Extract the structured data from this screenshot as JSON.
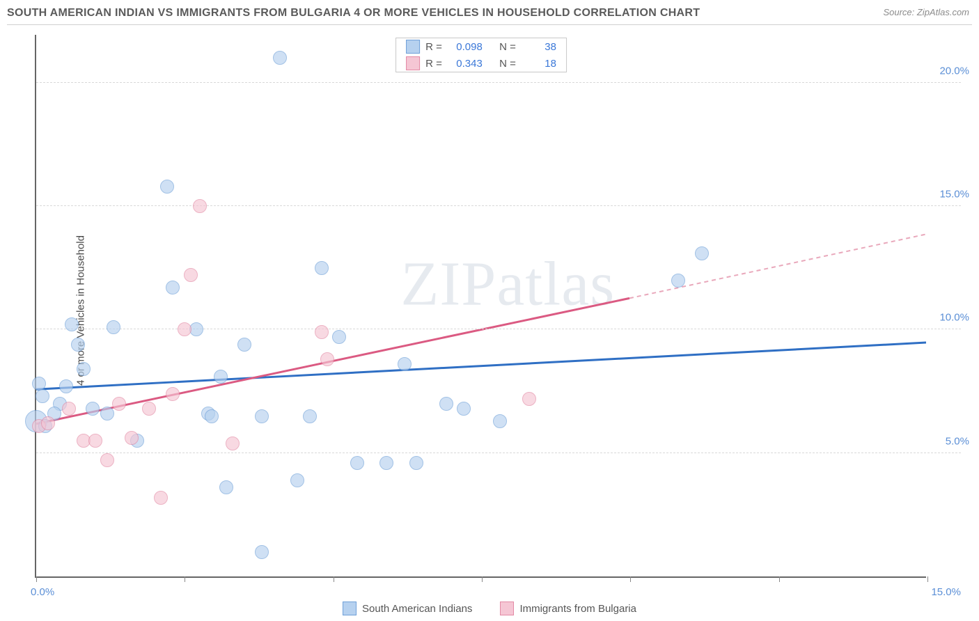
{
  "title": "SOUTH AMERICAN INDIAN VS IMMIGRANTS FROM BULGARIA 4 OR MORE VEHICLES IN HOUSEHOLD CORRELATION CHART",
  "source": "Source: ZipAtlas.com",
  "watermark": "ZIPatlas",
  "y_axis_label": "4 or more Vehicles in Household",
  "chart": {
    "type": "scatter",
    "x_domain": [
      0,
      15
    ],
    "y_domain": [
      0,
      22
    ],
    "x_ticks_label_left": "0.0%",
    "x_ticks_label_right": "15.0%",
    "x_tick_positions": [
      0,
      2.5,
      5,
      7.5,
      10,
      12.5,
      15
    ],
    "y_gridlines": [
      {
        "value": 5,
        "label": "5.0%"
      },
      {
        "value": 10,
        "label": "10.0%"
      },
      {
        "value": 15,
        "label": "15.0%"
      },
      {
        "value": 20,
        "label": "20.0%"
      }
    ],
    "background_color": "#ffffff",
    "grid_color": "#d8d8d8",
    "axis_color": "#666666",
    "tick_label_color": "#5b8fd6",
    "point_radius": 10,
    "series": [
      {
        "name": "South American Indians",
        "fill": "#b6d1ef",
        "stroke": "#6fa0d8",
        "fill_opacity": 0.65,
        "r_value": "0.098",
        "n_value": "38",
        "trend": {
          "x1": 0,
          "y1": 7.6,
          "x2": 15,
          "y2": 9.5,
          "color": "#2f6fc4",
          "width": 3,
          "dash": "none"
        },
        "points": [
          {
            "x": 0.0,
            "y": 6.3,
            "r": 16
          },
          {
            "x": 0.05,
            "y": 7.8
          },
          {
            "x": 0.15,
            "y": 6.1
          },
          {
            "x": 0.1,
            "y": 7.3
          },
          {
            "x": 0.4,
            "y": 7.0
          },
          {
            "x": 0.3,
            "y": 6.6
          },
          {
            "x": 0.6,
            "y": 10.2
          },
          {
            "x": 0.7,
            "y": 9.4
          },
          {
            "x": 0.8,
            "y": 8.4
          },
          {
            "x": 0.95,
            "y": 6.8
          },
          {
            "x": 1.2,
            "y": 6.6
          },
          {
            "x": 1.3,
            "y": 10.1
          },
          {
            "x": 1.7,
            "y": 5.5
          },
          {
            "x": 2.2,
            "y": 15.8
          },
          {
            "x": 2.3,
            "y": 11.7
          },
          {
            "x": 2.7,
            "y": 10.0
          },
          {
            "x": 2.9,
            "y": 6.6
          },
          {
            "x": 2.95,
            "y": 6.5
          },
          {
            "x": 3.1,
            "y": 8.1
          },
          {
            "x": 3.2,
            "y": 3.6
          },
          {
            "x": 3.5,
            "y": 9.4
          },
          {
            "x": 3.8,
            "y": 1.0
          },
          {
            "x": 3.8,
            "y": 6.5
          },
          {
            "x": 4.1,
            "y": 21.0
          },
          {
            "x": 4.4,
            "y": 3.9
          },
          {
            "x": 4.6,
            "y": 6.5
          },
          {
            "x": 4.8,
            "y": 12.5
          },
          {
            "x": 5.1,
            "y": 9.7
          },
          {
            "x": 5.4,
            "y": 4.6
          },
          {
            "x": 5.9,
            "y": 4.6
          },
          {
            "x": 6.2,
            "y": 8.6
          },
          {
            "x": 6.4,
            "y": 4.6
          },
          {
            "x": 6.9,
            "y": 7.0
          },
          {
            "x": 7.2,
            "y": 6.8
          },
          {
            "x": 7.8,
            "y": 6.3
          },
          {
            "x": 10.8,
            "y": 12.0
          },
          {
            "x": 11.2,
            "y": 13.1
          },
          {
            "x": 0.5,
            "y": 7.7
          }
        ]
      },
      {
        "name": "Immigrants from Bulgaria",
        "fill": "#f5c6d4",
        "stroke": "#e389a4",
        "fill_opacity": 0.65,
        "r_value": "0.343",
        "n_value": "18",
        "trend_solid": {
          "x1": 0,
          "y1": 6.2,
          "x2": 10,
          "y2": 11.3,
          "color": "#db5a82",
          "width": 3
        },
        "trend_dash": {
          "x1": 10,
          "y1": 11.3,
          "x2": 15,
          "y2": 13.9,
          "color": "#e9a8bb",
          "width": 2
        },
        "points": [
          {
            "x": 0.05,
            "y": 6.1
          },
          {
            "x": 0.2,
            "y": 6.2
          },
          {
            "x": 0.55,
            "y": 6.8
          },
          {
            "x": 0.8,
            "y": 5.5
          },
          {
            "x": 1.0,
            "y": 5.5
          },
          {
            "x": 1.2,
            "y": 4.7
          },
          {
            "x": 1.4,
            "y": 7.0
          },
          {
            "x": 1.6,
            "y": 5.6
          },
          {
            "x": 1.9,
            "y": 6.8
          },
          {
            "x": 2.1,
            "y": 3.2
          },
          {
            "x": 2.3,
            "y": 7.4
          },
          {
            "x": 2.5,
            "y": 10.0
          },
          {
            "x": 2.6,
            "y": 12.2
          },
          {
            "x": 2.75,
            "y": 15.0
          },
          {
            "x": 3.3,
            "y": 5.4
          },
          {
            "x": 4.8,
            "y": 9.9
          },
          {
            "x": 4.9,
            "y": 8.8
          },
          {
            "x": 8.3,
            "y": 7.2
          }
        ]
      }
    ]
  },
  "stats_legend": {
    "r_prefix": "R =",
    "n_prefix": "N ="
  },
  "bottom_legend": {
    "label1": "South American Indians",
    "label2": "Immigrants from Bulgaria"
  }
}
